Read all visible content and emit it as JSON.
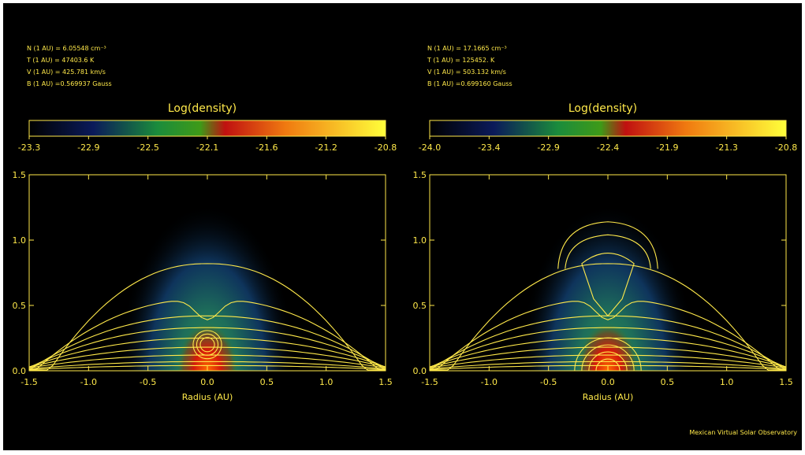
{
  "credit": "Mexican Virtual Solar Observatory",
  "chart_data": [
    {
      "type": "heatmap",
      "title": "Log(density)",
      "parameters": [
        "N (1 AU) = 6.05548 cm⁻³",
        "T (1 AU) = 47403.6 K",
        "V (1 AU) = 425.781 km/s",
        "B (1 AU) =0.569937 Gauss"
      ],
      "colorbar": {
        "ticks": [
          "-23.3",
          "-22.9",
          "-22.5",
          "-22.1",
          "-21.6",
          "-21.2",
          "-20.8"
        ],
        "range": [
          -23.3,
          -20.8
        ]
      },
      "xlabel": "Radius (AU)",
      "ylabel": "",
      "xlim": [
        -1.5,
        1.5
      ],
      "ylim": [
        0.0,
        1.5
      ],
      "xticks": [
        "-1.5",
        "-1.0",
        "-0.5",
        "0.0",
        "0.5",
        "1.0",
        "1.5"
      ],
      "yticks": [
        "0.0",
        "0.5",
        "1.0",
        "1.5"
      ],
      "grid": false,
      "colors": {
        "line": "#ffe94a"
      }
    },
    {
      "type": "heatmap",
      "title": "Log(density)",
      "parameters": [
        "N (1 AU) = 17.1665 cm⁻³",
        "T (1 AU) = 125452. K",
        "V (1 AU) = 503.132 km/s",
        "B (1 AU) =0.699160 Gauss"
      ],
      "colorbar": {
        "ticks": [
          "-24.0",
          "-23.4",
          "-22.9",
          "-22.4",
          "-21.9",
          "-21.3",
          "-20.8"
        ],
        "range": [
          -24.0,
          -20.8
        ]
      },
      "xlabel": "Radius (AU)",
      "ylabel": "",
      "xlim": [
        -1.5,
        1.5
      ],
      "ylim": [
        0.0,
        1.5
      ],
      "xticks": [
        "-1.5",
        "-1.0",
        "-0.5",
        "0.0",
        "0.5",
        "1.0",
        "1.5"
      ],
      "yticks": [
        "0.0",
        "0.5",
        "1.0",
        "1.5"
      ],
      "grid": false,
      "colors": {
        "line": "#ffe94a"
      }
    }
  ]
}
